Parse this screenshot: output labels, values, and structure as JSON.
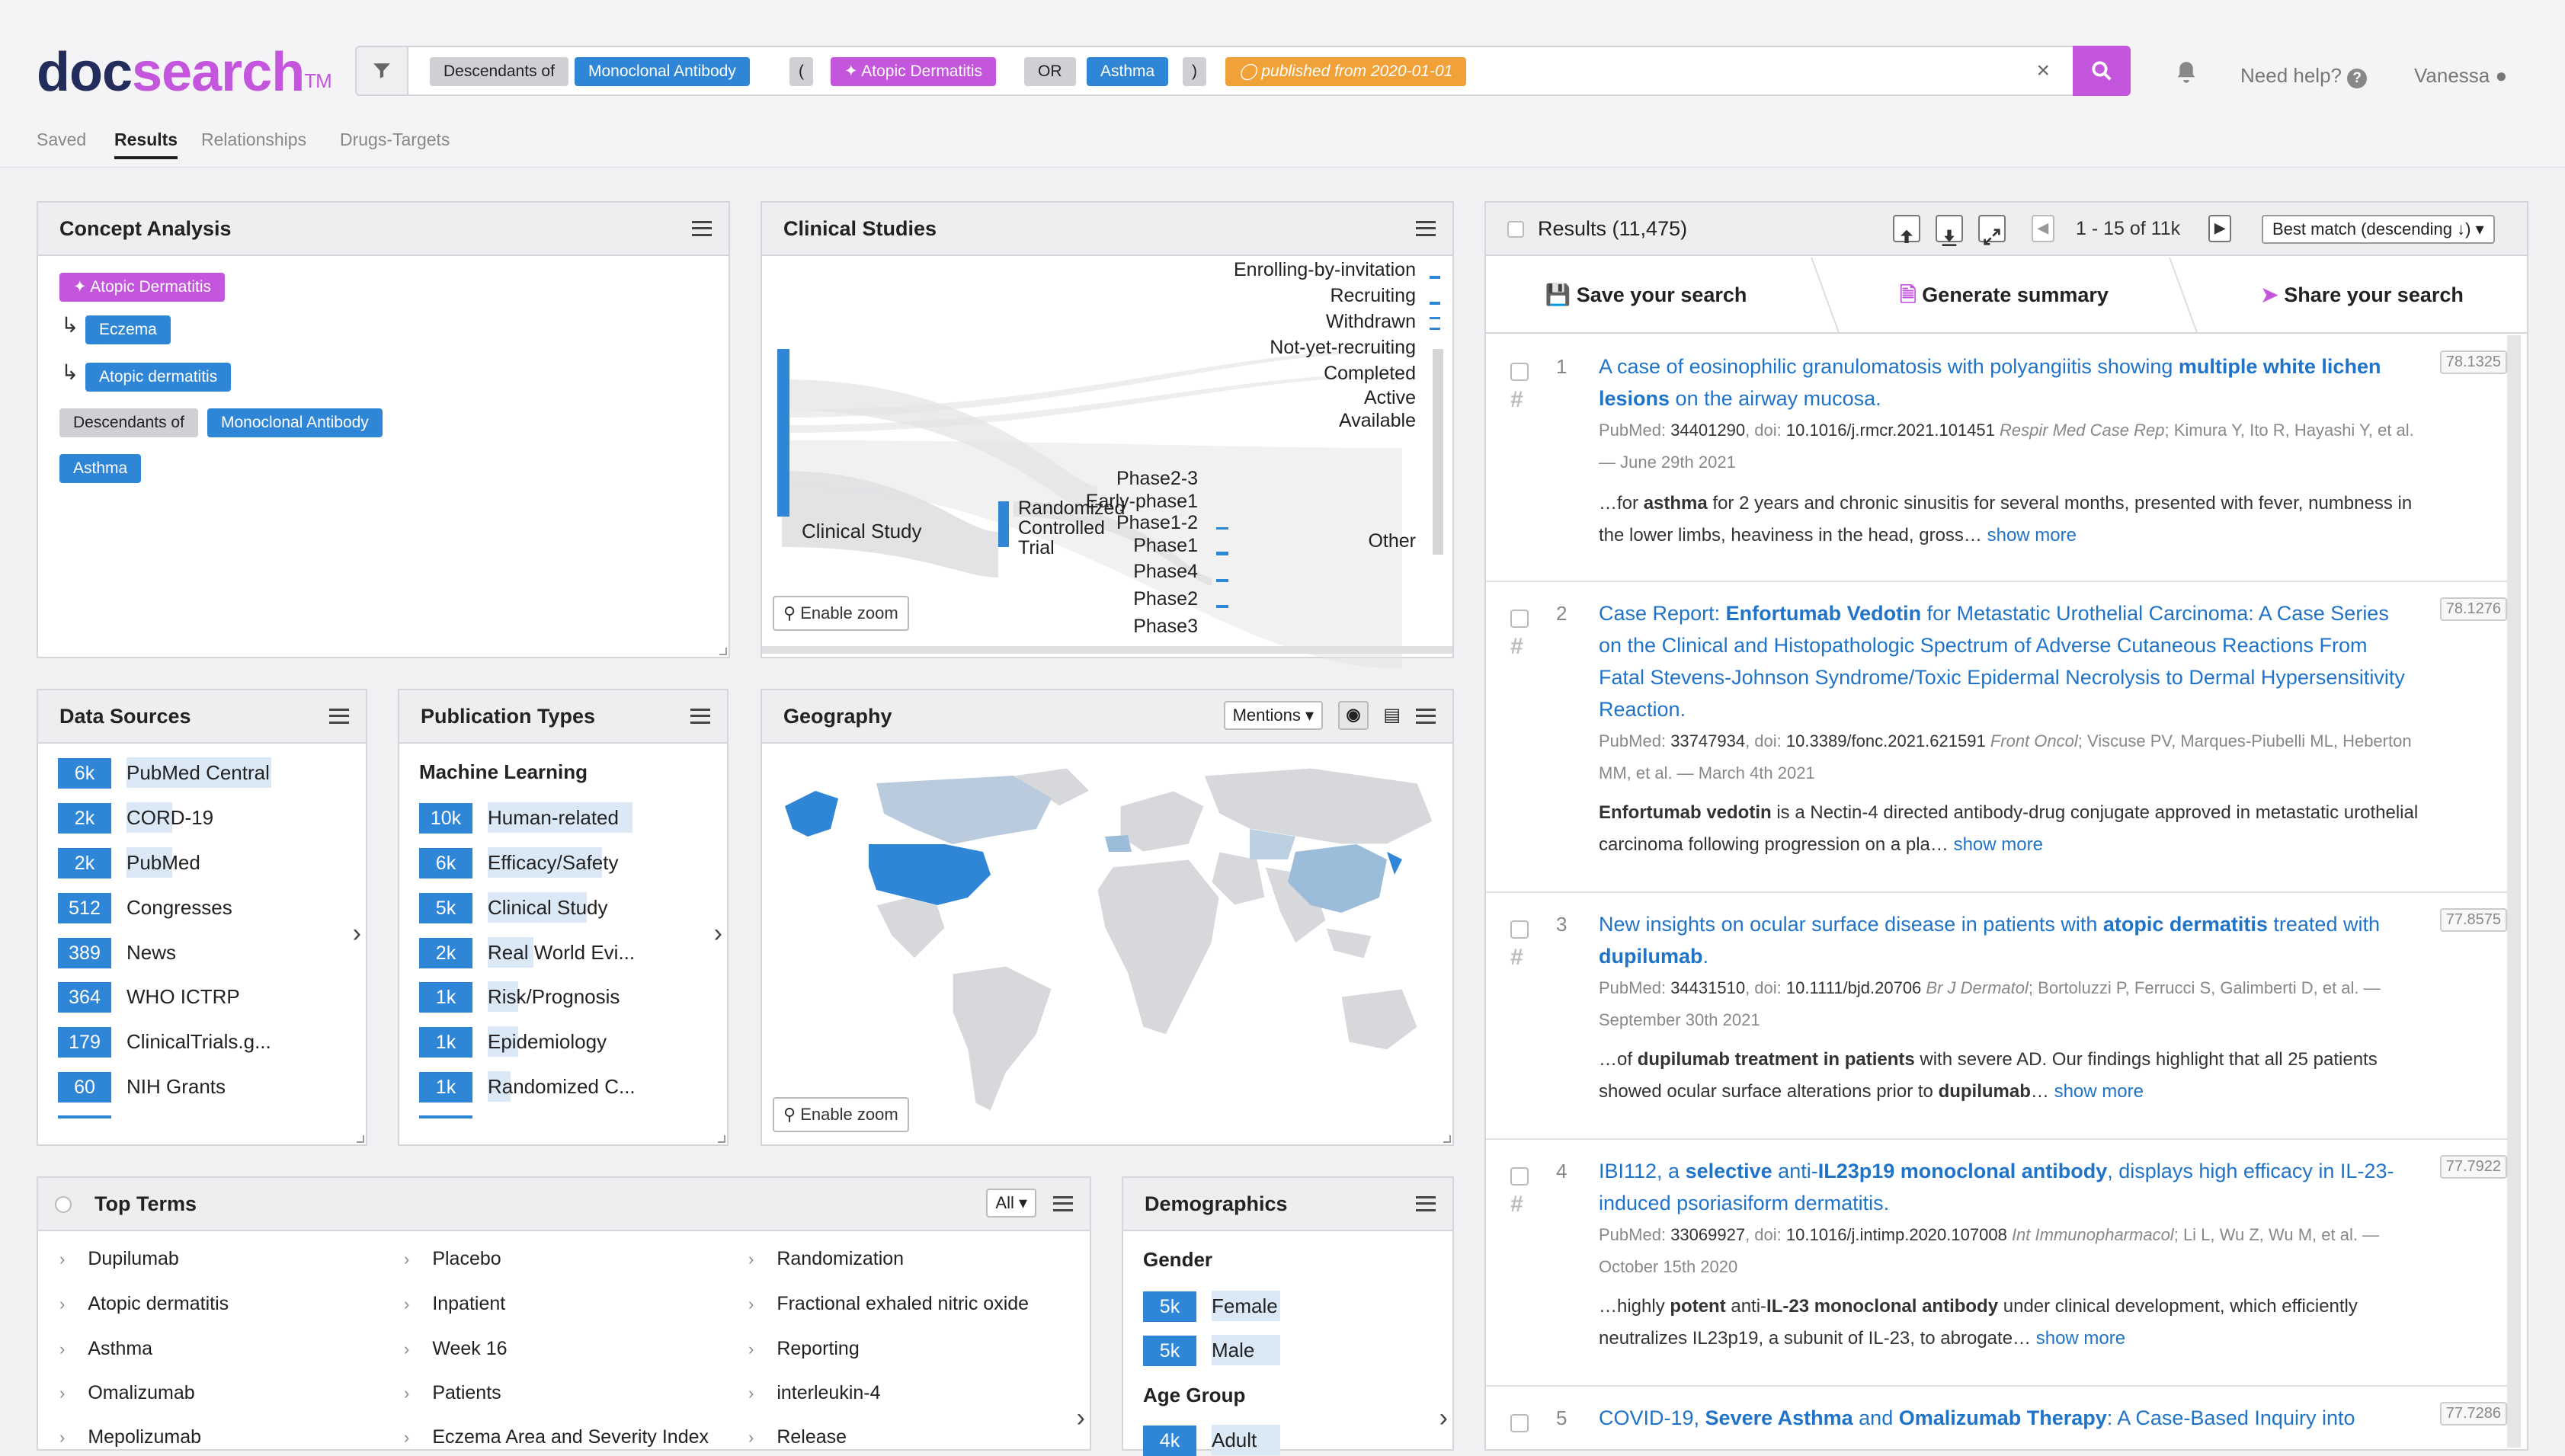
{
  "header": {
    "logo": {
      "part1": "doc",
      "part2": "search",
      "tm": "TM"
    },
    "search": {
      "chips": [
        {
          "text": "Descendants of",
          "style": "grey"
        },
        {
          "text": "Monoclonal Antibody",
          "style": "blue"
        },
        {
          "text": "(",
          "style": "grey"
        },
        {
          "text": "Atopic Dermatitis",
          "style": "purple"
        },
        {
          "text": "OR",
          "style": "grey"
        },
        {
          "text": "Asthma",
          "style": "blue"
        },
        {
          "text": ")",
          "style": "grey"
        },
        {
          "text": "published from 2020-01-01",
          "style": "orange"
        }
      ],
      "clear": "×"
    },
    "help": "Need help?",
    "user": "Vanessa",
    "tabs": [
      "Saved",
      "Results",
      "Relationships",
      "Drugs-Targets"
    ],
    "active_tab": "Results"
  },
  "concept": {
    "title": "Concept Analysis",
    "tags": {
      "t1": "Atopic Dermatitis",
      "t2": "Eczema",
      "t3": "Atopic dermatitis",
      "t4a": "Descendants of",
      "t4b": "Monoclonal Antibody",
      "t5": "Asthma"
    }
  },
  "clinical": {
    "title": "Clinical Studies",
    "left": "Clinical Study",
    "mid": [
      "Randomized",
      "Controlled",
      "Trial"
    ],
    "phases": [
      "Phase2-3",
      "Early-phase1",
      "Phase1-2",
      "Phase1",
      "Phase4",
      "Phase2",
      "Phase3"
    ],
    "statuses": [
      "Enrolling-by-invitation",
      "Recruiting",
      "Withdrawn",
      "Not-yet-recruiting",
      "Completed",
      "Active",
      "Available"
    ],
    "other": "Other",
    "zoom": "Enable zoom"
  },
  "sources": {
    "title": "Data Sources",
    "items": [
      {
        "count": "6k",
        "label": "PubMed Central"
      },
      {
        "count": "2k",
        "label": "CORD-19"
      },
      {
        "count": "2k",
        "label": "PubMed"
      },
      {
        "count": "512",
        "label": "Congresses"
      },
      {
        "count": "389",
        "label": "News"
      },
      {
        "count": "364",
        "label": "WHO ICTRP"
      },
      {
        "count": "179",
        "label": "ClinicalTrials.g..."
      },
      {
        "count": "60",
        "label": "NIH Grants"
      }
    ]
  },
  "pubtypes": {
    "title": "Publication Types",
    "subtitle": "Machine Learning",
    "items": [
      {
        "count": "10k",
        "label": "Human-related"
      },
      {
        "count": "6k",
        "label": "Efficacy/Safety"
      },
      {
        "count": "5k",
        "label": "Clinical Study"
      },
      {
        "count": "2k",
        "label": "Real World Evi..."
      },
      {
        "count": "1k",
        "label": "Risk/Prognosis"
      },
      {
        "count": "1k",
        "label": "Epidemiology"
      },
      {
        "count": "1k",
        "label": "Randomized C..."
      }
    ]
  },
  "geo": {
    "title": "Geography",
    "mode": "Mentions",
    "zoom": "Enable zoom"
  },
  "terms": {
    "title": "Top Terms",
    "filter": "All",
    "col1": [
      "Dupilumab",
      "Atopic dermatitis",
      "Asthma",
      "Omalizumab",
      "Mepolizumab"
    ],
    "col2": [
      "Placebo",
      "Inpatient",
      "Week 16",
      "Patients",
      "Eczema Area and Severity Index"
    ],
    "col3": [
      "Randomization",
      "Fractional exhaled nitric oxide",
      "Reporting",
      "interleukin-4",
      "Release"
    ]
  },
  "demo": {
    "title": "Demographics",
    "gender_title": "Gender",
    "gender": [
      {
        "count": "5k",
        "label": "Female"
      },
      {
        "count": "5k",
        "label": "Male"
      }
    ],
    "age_title": "Age Group",
    "age": [
      {
        "count": "4k",
        "label": "Adult"
      }
    ]
  },
  "results": {
    "title": "Results (11,475)",
    "range": "1 - 15 of 11k",
    "sort": "Best match (descending ↓)",
    "actions": [
      "Save your search",
      "Generate summary",
      "Share your search"
    ],
    "items": [
      {
        "n": "1",
        "score": "78.1325",
        "title": [
          "A case of eosinophilic granulomatosis with polyangiitis showing ",
          "multiple white lichen lesions",
          " on the airway mucosa."
        ],
        "pm": "34401290",
        "doi": "10.1016/j.rmcr.2021.101451",
        "journal": "Respir Med Case Rep",
        "authors": "Kimura Y, Ito R, Hayashi Y, et al. — June 29th 2021",
        "snip": [
          "…for ",
          "asthma",
          " for 2 years and chronic sinusitis for several months, presented with fever, numbness in the lower limbs, heaviness in the head, gross…"
        ]
      },
      {
        "n": "2",
        "score": "78.1276",
        "title": [
          "Case Report: ",
          "Enfortumab Vedotin",
          " for Metastatic Urothelial Carcinoma: A Case Series on the Clinical and Histopathologic Spectrum of Adverse Cutaneous Reactions From Fatal Stevens-Johnson Syndrome/Toxic Epidermal Necrolysis to Dermal Hypersensitivity Reaction."
        ],
        "pm": "33747934",
        "doi": "10.3389/fonc.2021.621591",
        "journal": "Front Oncol",
        "authors": "Viscuse PV, Marques-Piubelli ML, Heberton MM, et al. — March 4th 2021",
        "snip": [
          "",
          "Enfortumab vedotin",
          " is a Nectin-4 directed antibody-drug conjugate approved in metastatic urothelial carcinoma following progression on a pla…"
        ]
      },
      {
        "n": "3",
        "score": "77.8575",
        "title": [
          "New insights on ocular surface disease in patients with ",
          "atopic dermatitis",
          " treated with ",
          "dupilumab",
          "."
        ],
        "pm": "34431510",
        "doi": "10.1111/bjd.20706",
        "journal": "Br J Dermatol",
        "authors": "Bortoluzzi P, Ferrucci S, Galimberti D, et al. — September 30th 2021",
        "snip": [
          "…of ",
          "dupilumab treatment in patients",
          " with severe AD. Our findings highlight that all 25 patients showed ocular surface alterations prior to ",
          "dupilumab",
          "…"
        ]
      },
      {
        "n": "4",
        "score": "77.7922",
        "title": [
          "IBI112, a ",
          "selective",
          " anti-",
          "IL23p19 monoclonal antibody",
          ", displays high efficacy in IL-23-induced psoriasiform dermatitis."
        ],
        "pm": "33069927",
        "doi": "10.1016/j.intimp.2020.107008",
        "journal": "Int Immunopharmacol",
        "authors": "Li L, Wu Z, Wu M, et al. — October 15th 2020",
        "snip": [
          "…highly ",
          "potent",
          " anti-",
          "IL-23 monoclonal antibody",
          " under clinical development, which efficiently neutralizes IL23p19, a subunit of IL-23, to abrogate…"
        ]
      },
      {
        "n": "5",
        "score": "77.7286",
        "title": [
          "COVID-19, ",
          "Severe Asthma",
          " and ",
          "Omalizumab Therapy",
          ": A Case-Based Inquiry into"
        ]
      }
    ],
    "labels": {
      "pubmed": "PubMed:",
      "doi": ", doi:",
      "more": "show more"
    }
  }
}
